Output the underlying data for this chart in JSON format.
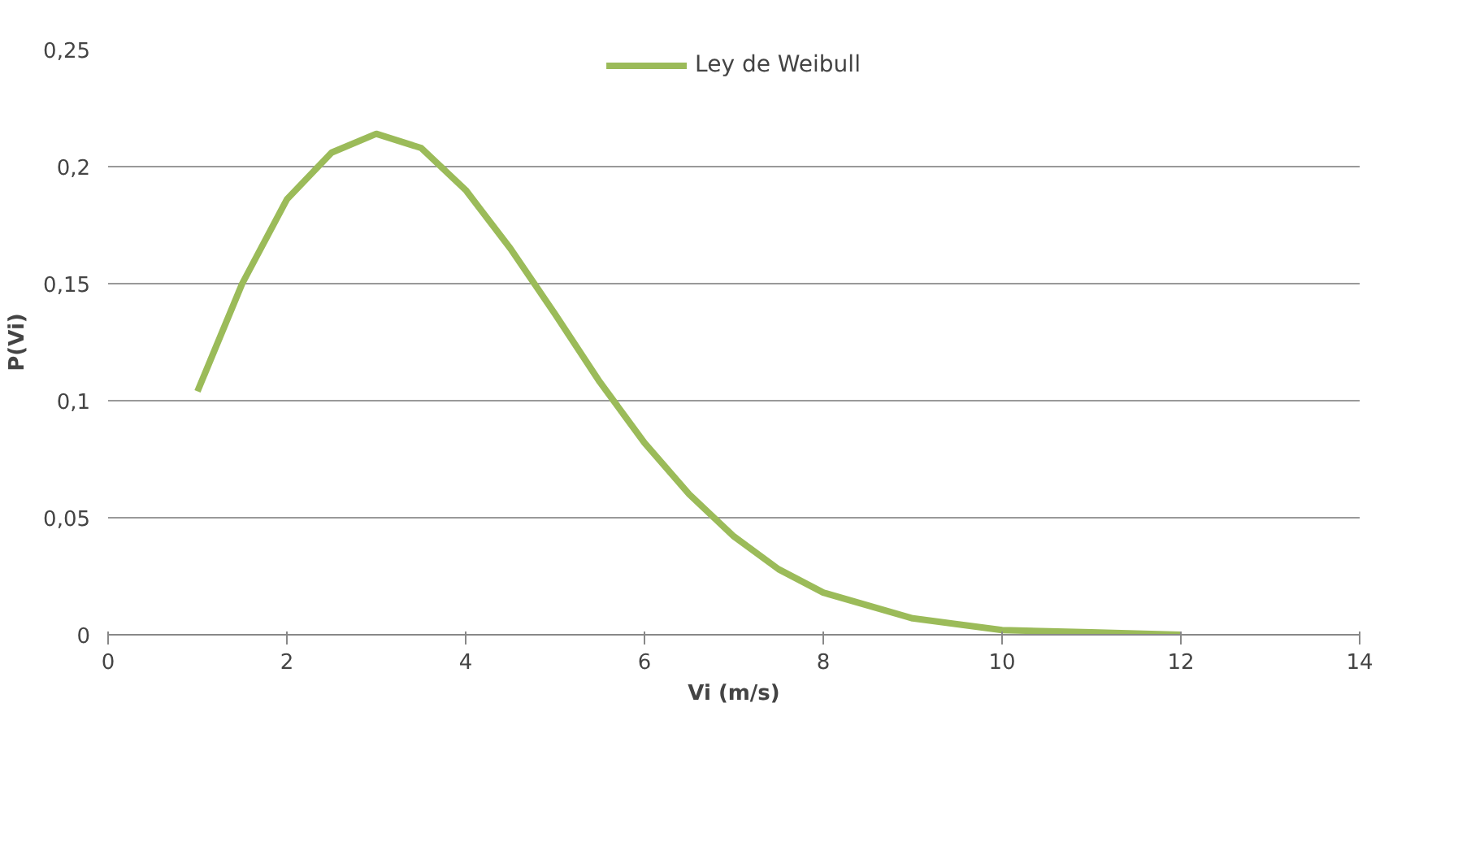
{
  "chart_data": {
    "type": "line",
    "xlabel": "Vi (m/s)",
    "ylabel": "P(Vi)",
    "x": [
      1,
      1.5,
      2,
      2.5,
      3,
      3.5,
      4,
      4.5,
      5,
      5.5,
      6,
      6.5,
      7,
      7.5,
      8,
      9,
      10,
      11,
      12
    ],
    "series": [
      {
        "name": "Ley de Weibull",
        "color": "#9bbb59",
        "values": [
          0.104,
          0.15,
          0.186,
          0.206,
          0.214,
          0.208,
          0.19,
          0.165,
          0.137,
          0.108,
          0.082,
          0.06,
          0.042,
          0.028,
          0.018,
          0.007,
          0.002,
          0.001,
          0
        ]
      }
    ],
    "xlim": [
      0,
      14
    ],
    "xticks": [
      0,
      2,
      4,
      6,
      8,
      10,
      12,
      14
    ],
    "ylim": [
      0,
      0.25
    ],
    "yticks": [
      {
        "value": 0,
        "label": "0"
      },
      {
        "value": 0.05,
        "label": "0,05"
      },
      {
        "value": 0.1,
        "label": "0,1"
      },
      {
        "value": 0.15,
        "label": "0,15"
      },
      {
        "value": 0.2,
        "label": "0,2"
      },
      {
        "value": 0.25,
        "label": "0,25"
      }
    ],
    "grid": "y",
    "legend": "top",
    "marker": "none",
    "line_style": "solid"
  }
}
